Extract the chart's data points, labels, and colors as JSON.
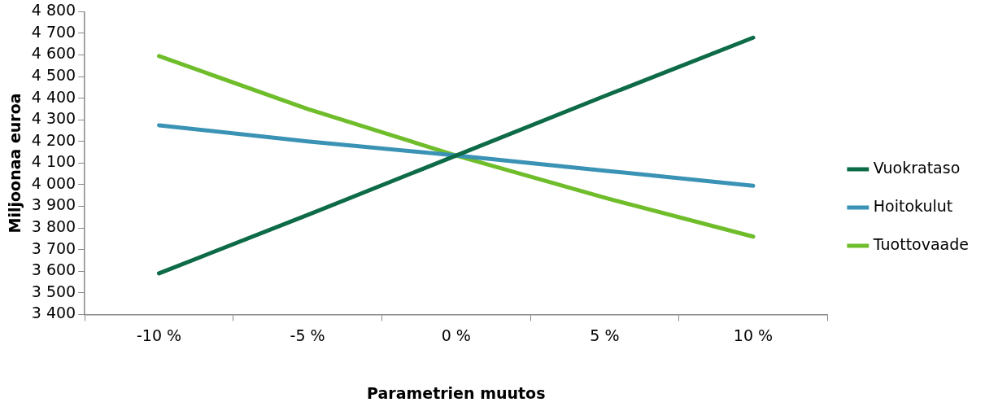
{
  "chart_data": {
    "type": "line",
    "xlabel": "Parametrien muutos",
    "ylabel": "Miljoonaa euroa",
    "categories": [
      "-10 %",
      "-5 %",
      "0 %",
      "5 %",
      "10 %"
    ],
    "series": [
      {
        "name": "Vuokrataso",
        "color": "#0e6b47",
        "values": [
          3590,
          3860,
          4135,
          4410,
          4680
        ]
      },
      {
        "name": "Hoitokulut",
        "color": "#3a93b5",
        "values": [
          4275,
          4200,
          4135,
          4065,
          3995
        ]
      },
      {
        "name": "Tuottovaade",
        "color": "#6fbd2b",
        "values": [
          4595,
          4350,
          4135,
          3940,
          3760
        ]
      }
    ],
    "ylim": [
      3400,
      4800
    ],
    "yticks": [
      {
        "value": 3400,
        "label": "3 400"
      },
      {
        "value": 3500,
        "label": "3 500"
      },
      {
        "value": 3600,
        "label": "3 600"
      },
      {
        "value": 3700,
        "label": "3 700"
      },
      {
        "value": 3800,
        "label": "3 800"
      },
      {
        "value": 3900,
        "label": "3 900"
      },
      {
        "value": 4000,
        "label": "4 000"
      },
      {
        "value": 4100,
        "label": "4 100"
      },
      {
        "value": 4200,
        "label": "4 200"
      },
      {
        "value": 4300,
        "label": "4 300"
      },
      {
        "value": 4400,
        "label": "4 400"
      },
      {
        "value": 4500,
        "label": "4 500"
      },
      {
        "value": 4600,
        "label": "4 600"
      },
      {
        "value": 4700,
        "label": "4 700"
      },
      {
        "value": 4800,
        "label": "4 800"
      }
    ],
    "grid": false,
    "legend": "right",
    "marker": "none",
    "line_style": "solid"
  }
}
